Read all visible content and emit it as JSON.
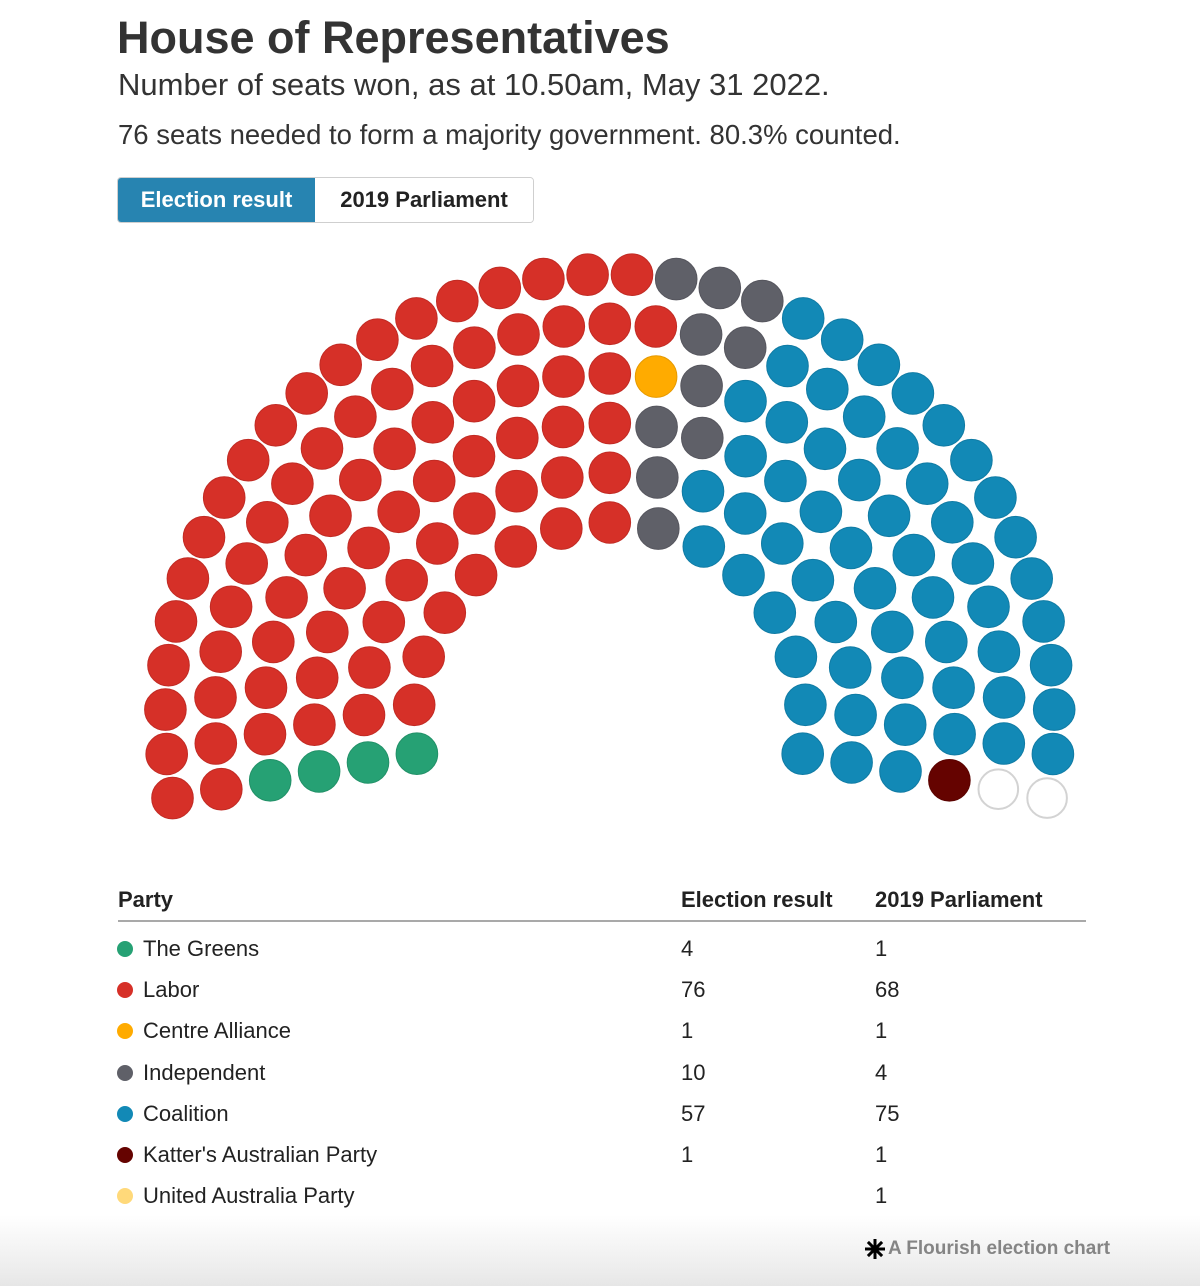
{
  "header": {
    "title": "House of Representatives",
    "subtitle": "Number of seats won, as at 10.50am, May 31 2022.",
    "note": "76 seats needed to form a majority government. 80.3% counted."
  },
  "toggle": {
    "buttons": [
      {
        "label": "Election result",
        "active": true
      },
      {
        "label": "2019 Parliament",
        "active": false
      }
    ],
    "active_color": "#2784b1"
  },
  "table": {
    "party_header": "Party"
  },
  "chart_data": {
    "type": "pie",
    "categories": [
      "The Greens",
      "Labor",
      "Centre Alliance",
      "Independent",
      "Coalition",
      "Katter's Australian Party",
      "United Australia Party"
    ],
    "series": [
      {
        "name": "Election result",
        "values": [
          4,
          76,
          1,
          10,
          57,
          1,
          null
        ]
      },
      {
        "name": "2019 Parliament",
        "values": [
          1,
          68,
          1,
          4,
          75,
          1,
          1
        ]
      }
    ],
    "colors": [
      "#26a174",
      "#d63028",
      "#ffab00",
      "#5f6068",
      "#1289b6",
      "#650300",
      "#ffd97a"
    ],
    "total_seats": 151,
    "unallocated_seat_outline": "#d3d3d3",
    "legend": "bottom"
  },
  "footer": {
    "credit": "A Flourish election chart",
    "icon": "flourish-asterisk-icon"
  }
}
